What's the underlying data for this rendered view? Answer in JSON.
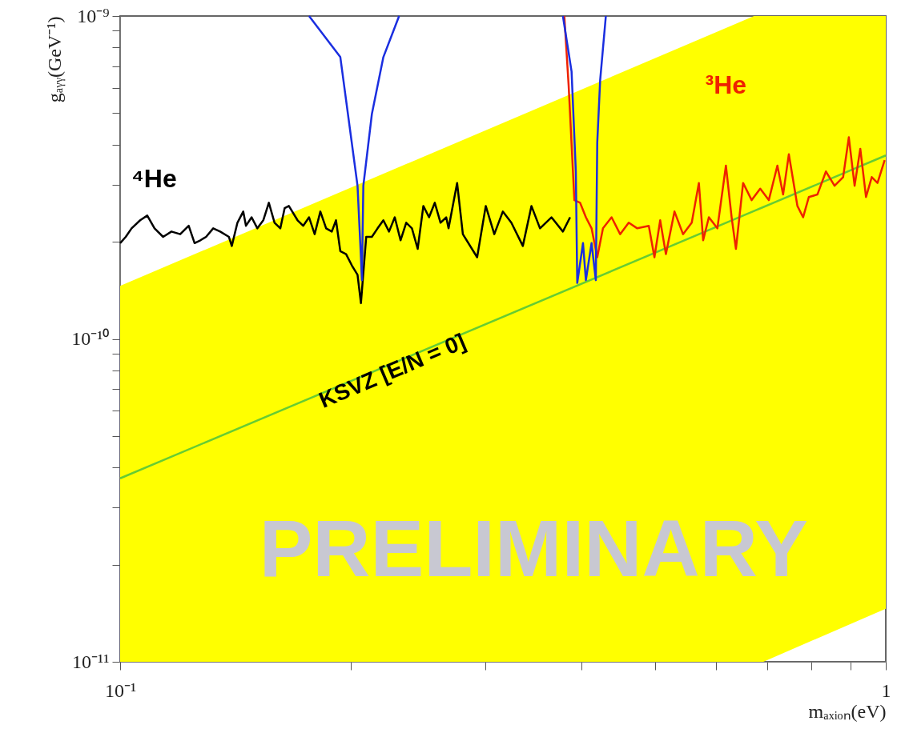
{
  "chart_data": {
    "type": "line",
    "xlabel": "mₐₓᵢₒₙ(eV)",
    "ylabel": "gₐᵧᵧ(GeV⁻¹)",
    "log": "xy",
    "xlim": [
      0.1,
      1
    ],
    "ylim": [
      1e-11,
      1e-09
    ],
    "xticks": [
      {
        "value": 0.1,
        "label": "10⁻¹"
      },
      {
        "value": 0.2,
        "label": null
      },
      {
        "value": 0.3,
        "label": null
      },
      {
        "value": 0.4,
        "label": null
      },
      {
        "value": 0.5,
        "label": null
      },
      {
        "value": 0.6,
        "label": null
      },
      {
        "value": 0.7,
        "label": null
      },
      {
        "value": 0.8,
        "label": null
      },
      {
        "value": 0.9,
        "label": null
      },
      1
    ],
    "yticks": [
      {
        "value": 1e-11,
        "label": "10⁻¹¹"
      },
      {
        "value": 2e-11,
        "label": null
      },
      {
        "value": 3e-11,
        "label": null
      },
      {
        "value": 4e-11,
        "label": null
      },
      {
        "value": 5e-11,
        "label": null
      },
      {
        "value": 6e-11,
        "label": null
      },
      {
        "value": 7e-11,
        "label": null
      },
      {
        "value": 8e-11,
        "label": null
      },
      {
        "value": 9e-11,
        "label": null
      },
      {
        "value": 1e-10,
        "label": "10⁻¹⁰"
      },
      {
        "value": 2e-10,
        "label": null
      },
      {
        "value": 3e-10,
        "label": null
      },
      {
        "value": 4e-10,
        "label": null
      },
      {
        "value": 5e-10,
        "label": null
      },
      {
        "value": 6e-10,
        "label": null
      },
      {
        "value": 7e-10,
        "label": null
      },
      {
        "value": 8e-10,
        "label": null
      },
      {
        "value": 9e-10,
        "label": null
      },
      {
        "value": 1e-09,
        "label": "10⁻⁹"
      }
    ],
    "annotations": [
      "PRELIMINARY",
      "KSVZ [E/N = 0]"
    ],
    "series": [
      {
        "type": "line",
        "color": "#66cc33",
        "x": [
          0.1,
          0.673,
          0.692,
          1
        ],
        "values": [
          3.7e-11,
          2.49e-10,
          2.56e-10,
          3.7e-10
        ],
        "lower": [
          1e-11,
          1e-11,
          1e-11,
          1.46e-11
        ],
        "upper": [
          1.46e-10,
          1e-09,
          1e-09,
          1e-09
        ]
      },
      {
        "type": "line",
        "name": "⁴He",
        "color": "#000000",
        "x": [
          0.1,
          0.1017,
          0.1035,
          0.1062,
          0.1085,
          0.1109,
          0.1138,
          0.1167,
          0.1198,
          0.1229,
          0.1251,
          0.1273,
          0.1295,
          0.1323,
          0.1351,
          0.1387,
          0.1399,
          0.1423,
          0.1448,
          0.146,
          0.1485,
          0.1511,
          0.1538,
          0.1564,
          0.1591,
          0.1619,
          0.164,
          0.1661,
          0.1705,
          0.1734,
          0.1765,
          0.1795,
          0.1826,
          0.1858,
          0.189,
          0.1914,
          0.1939,
          0.1973,
          0.2007,
          0.2042,
          0.2063,
          0.2096,
          0.2132,
          0.2169,
          0.2207,
          0.2245,
          0.2284,
          0.2324,
          0.2364,
          0.2405,
          0.2447,
          0.2489,
          0.2532,
          0.2576,
          0.2621,
          0.2666,
          0.2685,
          0.2755,
          0.2803,
          0.2926,
          0.3003,
          0.3081,
          0.3161,
          0.3243,
          0.3357,
          0.3445,
          0.3535,
          0.3659,
          0.3787,
          0.387
        ],
        "values": [
          1.98e-10,
          2.07e-10,
          2.2e-10,
          2.33e-10,
          2.41e-10,
          2.2e-10,
          2.07e-10,
          2.15e-10,
          2.11e-10,
          2.24e-10,
          1.98e-10,
          2.02e-10,
          2.07e-10,
          2.2e-10,
          2.15e-10,
          2.07e-10,
          1.94e-10,
          2.29e-10,
          2.48e-10,
          2.24e-10,
          2.38e-10,
          2.2e-10,
          2.33e-10,
          2.64e-10,
          2.29e-10,
          2.2e-10,
          2.54e-10,
          2.58e-10,
          2.33e-10,
          2.24e-10,
          2.38e-10,
          2.11e-10,
          2.48e-10,
          2.2e-10,
          2.15e-10,
          2.33e-10,
          1.87e-10,
          1.83e-10,
          1.69e-10,
          1.58e-10,
          1.29e-10,
          2.07e-10,
          2.07e-10,
          2.2e-10,
          2.33e-10,
          2.15e-10,
          2.38e-10,
          2.02e-10,
          2.29e-10,
          2.2e-10,
          1.9e-10,
          2.58e-10,
          2.38e-10,
          2.64e-10,
          2.29e-10,
          2.38e-10,
          2.2e-10,
          3.04e-10,
          2.11e-10,
          1.79e-10,
          2.58e-10,
          2.11e-10,
          2.48e-10,
          2.29e-10,
          1.94e-10,
          2.58e-10,
          2.2e-10,
          2.38e-10,
          2.15e-10,
          2.38e-10
        ]
      },
      {
        "type": "line",
        "name": "³He",
        "color": "#ee2200",
        "x": [
          0.3803,
          0.3853,
          0.392,
          0.3988,
          0.4058,
          0.4128,
          0.4199,
          0.4272,
          0.4384,
          0.4498,
          0.4616,
          0.4736,
          0.4903,
          0.4987,
          0.5074,
          0.5162,
          0.5297,
          0.5435,
          0.5579,
          0.57,
          0.5774,
          0.5874,
          0.6026,
          0.6183,
          0.629,
          0.6372,
          0.6511,
          0.6681,
          0.6855,
          0.7034,
          0.7218,
          0.7343,
          0.7471,
          0.7666,
          0.7798,
          0.7934,
          0.8141,
          0.8353,
          0.8572,
          0.8796,
          0.8948,
          0.9105,
          0.9262,
          0.9423,
          0.9587,
          0.9754,
          0.9966
        ],
        "values": [
          1e-09,
          6.08e-10,
          2.69e-10,
          2.64e-10,
          2.38e-10,
          2.2e-10,
          1.79e-10,
          2.2e-10,
          2.38e-10,
          2.11e-10,
          2.29e-10,
          2.2e-10,
          2.24e-10,
          1.79e-10,
          2.33e-10,
          1.83e-10,
          2.48e-10,
          2.11e-10,
          2.29e-10,
          3.04e-10,
          2.02e-10,
          2.38e-10,
          2.2e-10,
          3.44e-10,
          2.38e-10,
          1.9e-10,
          3.04e-10,
          2.69e-10,
          2.92e-10,
          2.69e-10,
          3.44e-10,
          2.8e-10,
          3.73e-10,
          2.58e-10,
          2.38e-10,
          2.75e-10,
          2.8e-10,
          3.3e-10,
          2.98e-10,
          3.17e-10,
          4.21e-10,
          2.98e-10,
          3.88e-10,
          2.75e-10,
          3.17e-10,
          3.04e-10,
          3.58e-10
        ]
      },
      {
        "type": "line",
        "color": "#1a2ee0",
        "x": [
          0.1765,
          0.1939,
          0.2007,
          0.2042,
          0.2063,
          0.2069,
          0.2078,
          0.2132,
          0.2207,
          0.2314
        ],
        "values": [
          1e-09,
          7.46e-10,
          4.05e-10,
          2.98e-10,
          1.79e-10,
          1.52e-10,
          2.98e-10,
          4.97e-10,
          7.46e-10,
          1e-09
        ]
      },
      {
        "type": "line",
        "color": "#1a2ee0",
        "x": [
          0.3787,
          0.3887,
          0.3937,
          0.3954,
          0.4023,
          0.4058,
          0.4128,
          0.4181,
          0.4199,
          0.4236,
          0.4309
        ],
        "values": [
          1e-09,
          6.73e-10,
          3.3e-10,
          1.49e-10,
          1.98e-10,
          1.52e-10,
          1.98e-10,
          1.52e-10,
          4.05e-10,
          6.33e-10,
          1e-09
        ]
      }
    ]
  }
}
